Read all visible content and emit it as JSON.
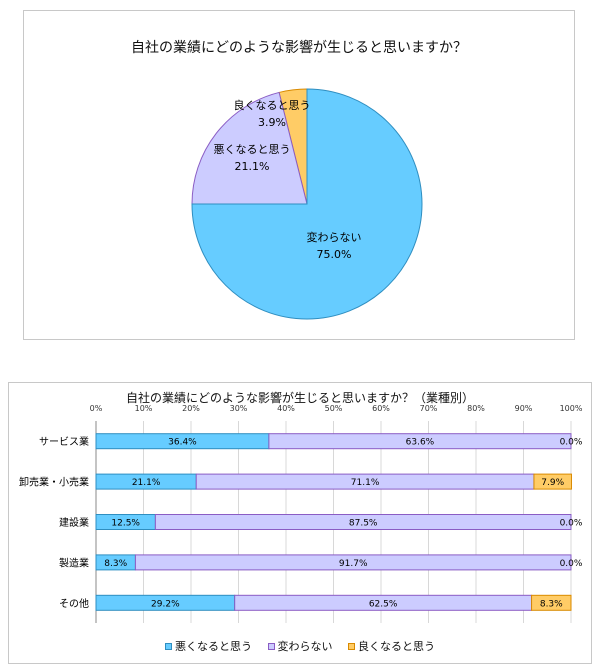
{
  "colors": {
    "bad": "#66ccff",
    "same": "#ccccff",
    "good": "#ffcc66",
    "bad_stroke": "#2f8ec0",
    "same_stroke": "#8a5cc4",
    "good_stroke": "#d98a00"
  },
  "chart_data": [
    {
      "type": "pie",
      "title": "自社の業績にどのような影響が生じると思いますか？",
      "slices": [
        {
          "label": "良くなると思う",
          "value": 3.9,
          "value_label": "3.9%",
          "color": "#ffcc66"
        },
        {
          "label": "悪くなると思う",
          "value": 21.1,
          "value_label": "21.1%",
          "color": "#ccccff"
        },
        {
          "label": "変わらない",
          "value": 75.0,
          "value_label": "75.0%",
          "color": "#66ccff"
        }
      ]
    },
    {
      "type": "bar",
      "orientation": "horizontal",
      "stacked": "percent",
      "title": "自社の業績にどのような影響が生じると思いますか？（業種別）",
      "categories": [
        "サービス業",
        "卸売業・小売業",
        "建設業",
        "製造業",
        "その他"
      ],
      "x_ticks": [
        "0%",
        "10%",
        "20%",
        "30%",
        "40%",
        "50%",
        "60%",
        "70%",
        "80%",
        "90%",
        "100%"
      ],
      "xlim": [
        0,
        100
      ],
      "series": [
        {
          "name": "悪くなると思う",
          "values": [
            36.4,
            21.1,
            12.5,
            8.3,
            29.2
          ],
          "labels": [
            "36.4%",
            "21.1%",
            "12.5%",
            "8.3%",
            "29.2%"
          ]
        },
        {
          "name": "変わらない",
          "values": [
            63.6,
            71.1,
            87.5,
            91.7,
            62.5
          ],
          "labels": [
            "63.6%",
            "71.1%",
            "87.5%",
            "91.7%",
            "62.5%"
          ]
        },
        {
          "name": "良くなると思う",
          "values": [
            0.0,
            7.9,
            0.0,
            0.0,
            8.3
          ],
          "labels": [
            "0.0%",
            "7.9%",
            "0.0%",
            "0.0%",
            "8.3%"
          ]
        }
      ],
      "legend_position": "bottom"
    }
  ]
}
